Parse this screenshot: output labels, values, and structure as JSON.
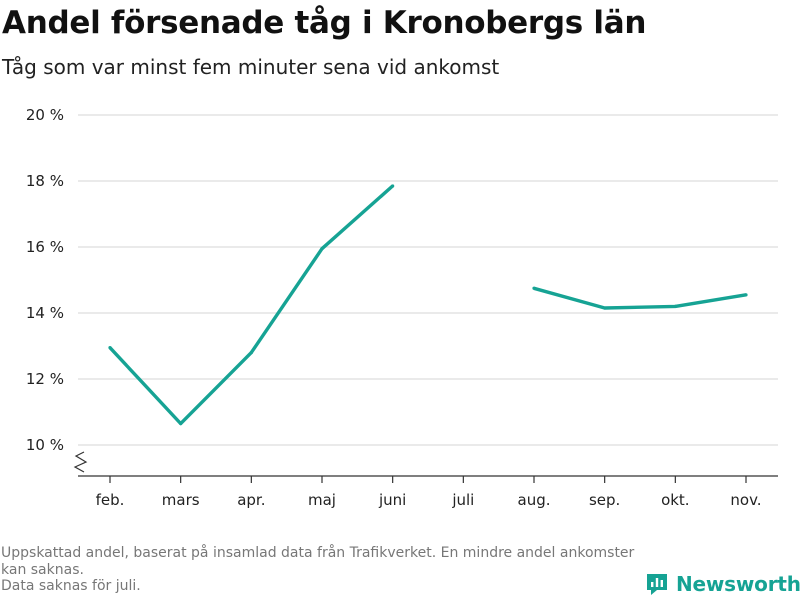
{
  "header": {
    "title": "Andel försenade tåg i Kronobergs län",
    "subtitle": "Tåg som var minst fem minuter sena vid ankomst"
  },
  "footnote": {
    "line1": "Uppskattad andel, baserat på insamlad data från Trafikverket. En mindre andel ankomster kan saknas.",
    "line2": "Data saknas för juli."
  },
  "brand": {
    "name": "Newsworthy",
    "color": "#16a394",
    "icon": "newsworthy-logo-icon"
  },
  "chart_data": {
    "type": "line",
    "title": "Andel försenade tåg i Kronobergs län",
    "subtitle": "Tåg som var minst fem minuter sena vid ankomst",
    "categories": [
      "feb.",
      "mars",
      "apr.",
      "maj",
      "juni",
      "juli",
      "aug.",
      "sep.",
      "okt.",
      "nov."
    ],
    "series": [
      {
        "values": [
          12.95,
          10.65,
          12.8,
          15.95,
          17.85,
          null,
          14.75,
          14.15,
          14.2,
          14.55
        ],
        "color": "#16a394"
      }
    ],
    "yticks": [
      10,
      12,
      14,
      16,
      18,
      20
    ],
    "ytick_labels": [
      "10 %",
      "12 %",
      "14 %",
      "16 %",
      "18 %",
      "20 %"
    ],
    "ylim": [
      10,
      20
    ],
    "y_axis_break": true,
    "grid": true,
    "legend": "none"
  }
}
